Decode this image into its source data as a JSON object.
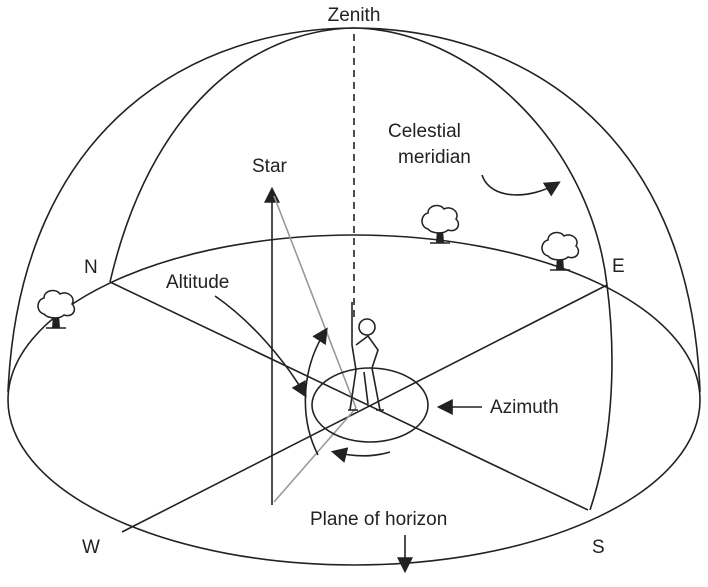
{
  "labels": {
    "zenith": "Zenith",
    "meridian_line1": "Celestial",
    "meridian_line2": "meridian",
    "star": "Star",
    "north": "N",
    "east": "E",
    "west": "W",
    "south": "S",
    "altitude": "Altitude",
    "azimuth": "Azimuth",
    "horizon": "Plane of horizon"
  }
}
